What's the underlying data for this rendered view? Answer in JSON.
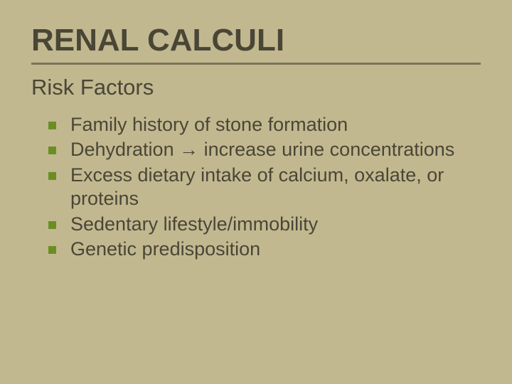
{
  "title": {
    "text": "RENAL CALCULI",
    "fontsize": 44,
    "color": "#4a4636"
  },
  "rule_color": "#7a7356",
  "subtitle": {
    "text": "Risk Factors",
    "fontsize": 31,
    "color": "#4a4636"
  },
  "bullet": {
    "color": "#6b8e23",
    "size": 11
  },
  "body_fontsize": 27,
  "body_color": "#4a4636",
  "background_color": "#c2b890",
  "items": [
    "Family history of stone formation",
    "Dehydration → increase urine concentrations",
    "Excess dietary intake of calcium, oxalate, or proteins",
    "Sedentary lifestyle/immobility",
    "Genetic predisposition"
  ]
}
